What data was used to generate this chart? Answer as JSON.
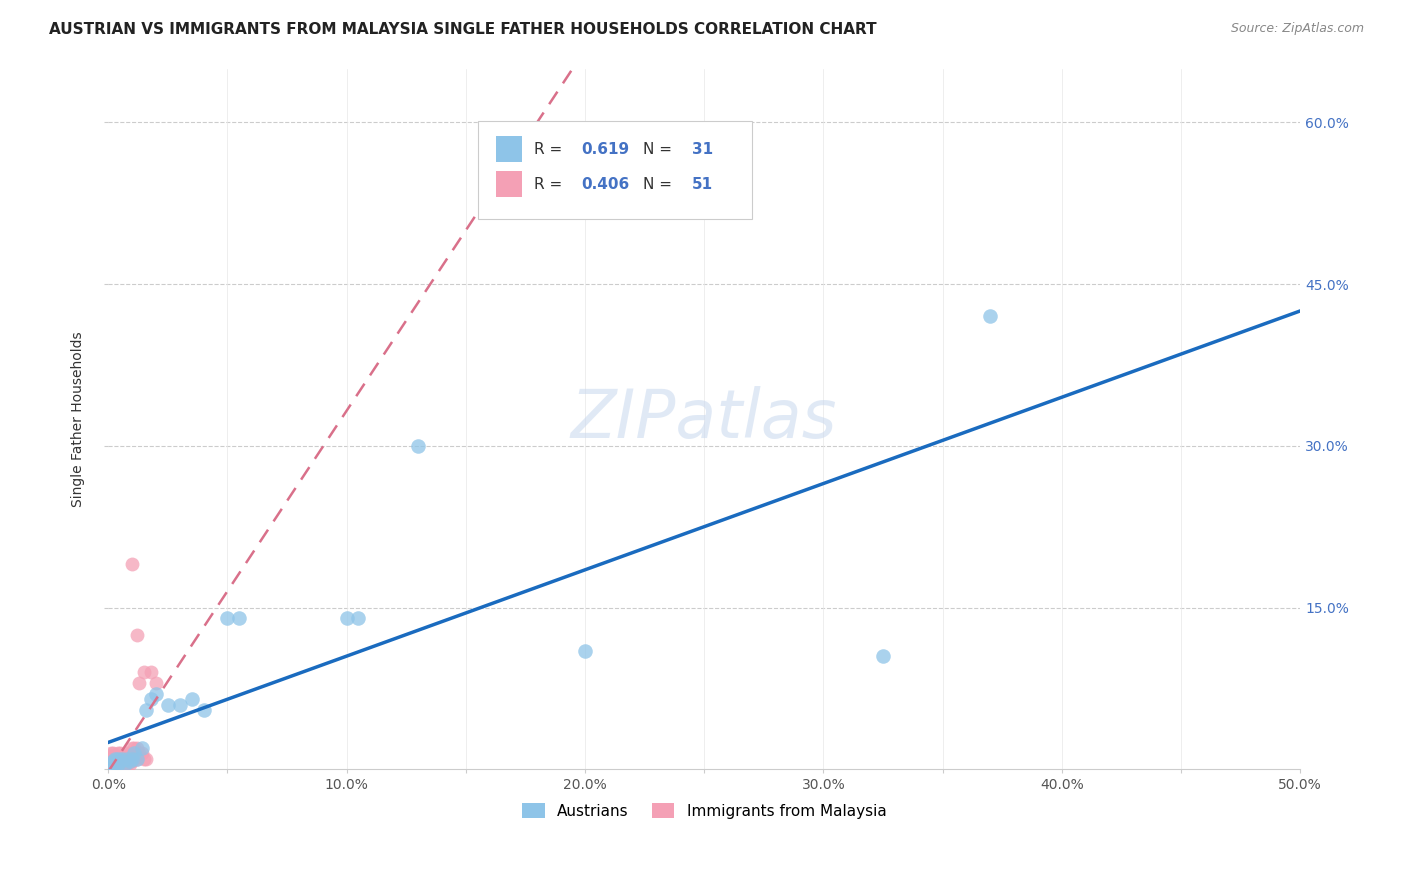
{
  "title": "AUSTRIAN VS IMMIGRANTS FROM MALAYSIA SINGLE FATHER HOUSEHOLDS CORRELATION CHART",
  "source": "Source: ZipAtlas.com",
  "ylabel": "Single Father Households",
  "xlim": [
    0,
    0.5
  ],
  "ylim": [
    0,
    0.65
  ],
  "watermark": "ZIPatlas",
  "blue_color": "#8ec4e8",
  "pink_color": "#f4a0b5",
  "regression_blue": "#1a6bbf",
  "regression_pink": "#d9708a",
  "background_color": "#ffffff",
  "grid_color": "#cccccc",
  "legend_blue_r": "0.619",
  "legend_blue_n": "31",
  "legend_pink_r": "0.406",
  "legend_pink_n": "51",
  "aus_x": [
    0.001,
    0.002,
    0.002,
    0.003,
    0.003,
    0.004,
    0.004,
    0.005,
    0.006,
    0.007,
    0.008,
    0.009,
    0.01,
    0.011,
    0.012,
    0.014,
    0.016,
    0.018,
    0.02,
    0.025,
    0.03,
    0.035,
    0.04,
    0.05,
    0.055,
    0.1,
    0.105,
    0.13,
    0.2,
    0.325,
    0.37
  ],
  "aus_y": [
    0.005,
    0.005,
    0.008,
    0.005,
    0.01,
    0.005,
    0.01,
    0.008,
    0.01,
    0.005,
    0.01,
    0.008,
    0.01,
    0.015,
    0.01,
    0.02,
    0.055,
    0.065,
    0.07,
    0.06,
    0.06,
    0.065,
    0.055,
    0.14,
    0.14,
    0.14,
    0.14,
    0.3,
    0.11,
    0.105,
    0.42
  ],
  "mal_x": [
    0.0005,
    0.001,
    0.001,
    0.001,
    0.001,
    0.001,
    0.002,
    0.002,
    0.002,
    0.002,
    0.002,
    0.003,
    0.003,
    0.003,
    0.003,
    0.004,
    0.004,
    0.004,
    0.004,
    0.005,
    0.005,
    0.005,
    0.005,
    0.006,
    0.006,
    0.006,
    0.007,
    0.007,
    0.007,
    0.008,
    0.008,
    0.008,
    0.009,
    0.009,
    0.009,
    0.01,
    0.01,
    0.011,
    0.011,
    0.012,
    0.012,
    0.013,
    0.014,
    0.015,
    0.016,
    0.018,
    0.02,
    0.012,
    0.015,
    0.013,
    0.01
  ],
  "mal_y": [
    0.005,
    0.005,
    0.007,
    0.01,
    0.012,
    0.015,
    0.005,
    0.007,
    0.01,
    0.012,
    0.015,
    0.005,
    0.007,
    0.01,
    0.012,
    0.005,
    0.007,
    0.01,
    0.015,
    0.005,
    0.007,
    0.01,
    0.015,
    0.005,
    0.008,
    0.012,
    0.005,
    0.008,
    0.012,
    0.005,
    0.008,
    0.015,
    0.005,
    0.01,
    0.015,
    0.008,
    0.02,
    0.01,
    0.02,
    0.01,
    0.02,
    0.015,
    0.015,
    0.01,
    0.01,
    0.09,
    0.08,
    0.125,
    0.09,
    0.08,
    0.19
  ]
}
